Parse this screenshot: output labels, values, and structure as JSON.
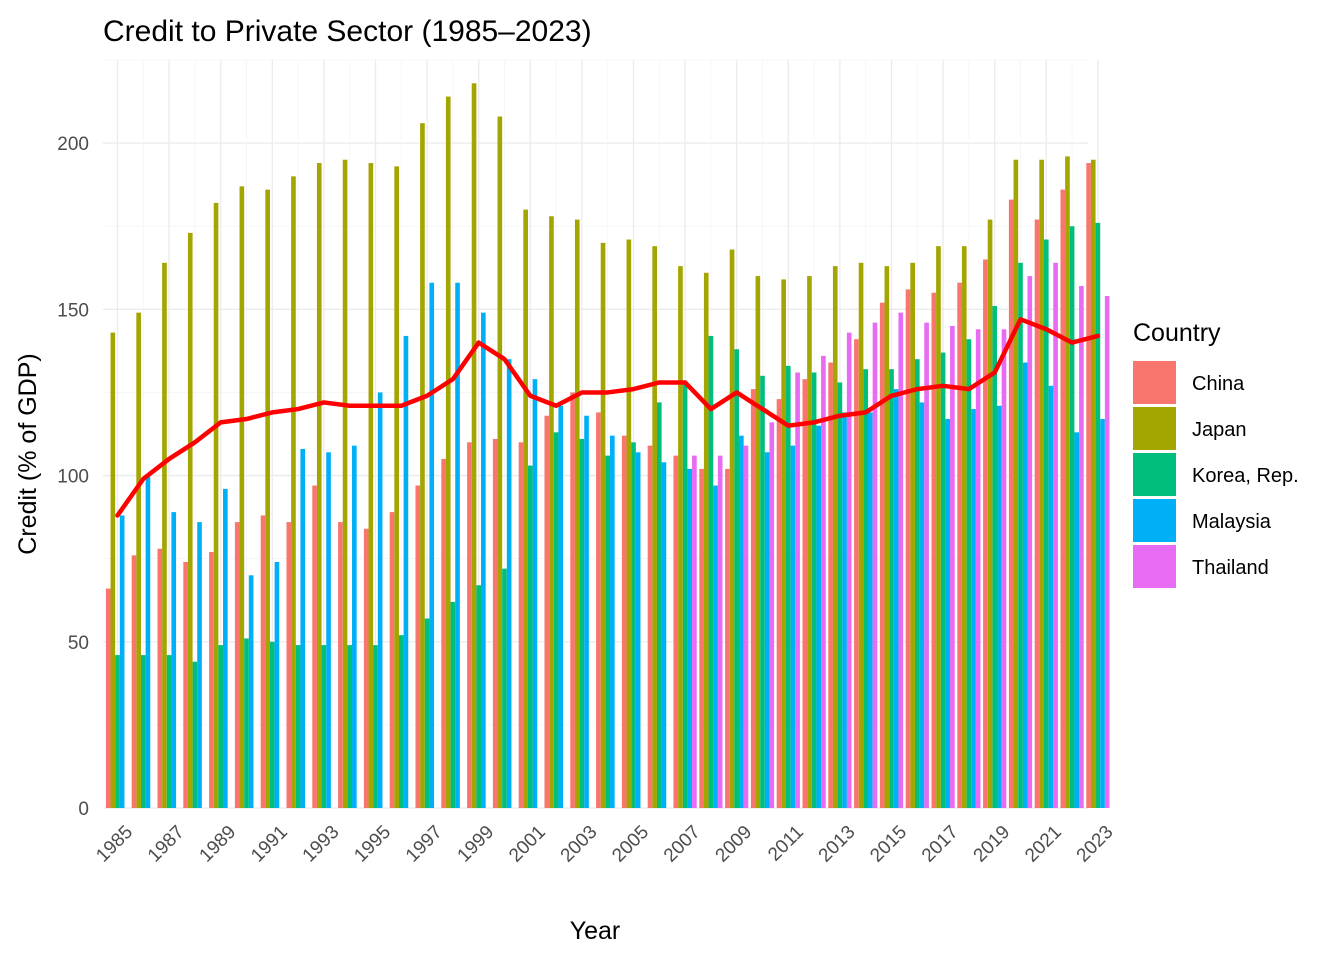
{
  "chart_data": {
    "type": "bar",
    "title": "Credit to Private Sector (1985–2023)",
    "xlabel": "Year",
    "ylabel": "Credit (% of GDP)",
    "ylim": [
      0,
      225
    ],
    "y_ticks": [
      0,
      50,
      100,
      150,
      200
    ],
    "x_tick_labels": [
      "1985",
      "1987",
      "1989",
      "1991",
      "1993",
      "1995",
      "1997",
      "1999",
      "2001",
      "2003",
      "2005",
      "2007",
      "2009",
      "2011",
      "2013",
      "2015",
      "2017",
      "2019",
      "2021",
      "2023"
    ],
    "grid": true,
    "legend": {
      "title": "Country",
      "position": "right"
    },
    "categories": [
      "1985",
      "1986",
      "1987",
      "1988",
      "1989",
      "1990",
      "1991",
      "1992",
      "1993",
      "1994",
      "1995",
      "1996",
      "1997",
      "1998",
      "1999",
      "2000",
      "2001",
      "2002",
      "2003",
      "2004",
      "2005",
      "2006",
      "2007",
      "2008",
      "2009",
      "2010",
      "2011",
      "2012",
      "2013",
      "2014",
      "2015",
      "2016",
      "2017",
      "2018",
      "2019",
      "2020",
      "2021",
      "2022",
      "2023"
    ],
    "series": [
      {
        "name": "China",
        "color": "#F8766D",
        "values": [
          66,
          76,
          78,
          74,
          77,
          86,
          88,
          86,
          97,
          86,
          84,
          89,
          97,
          105,
          110,
          111,
          110,
          118,
          125,
          119,
          112,
          109,
          106,
          102,
          102,
          126,
          123,
          129,
          134,
          141,
          152,
          156,
          155,
          158,
          165,
          183,
          177,
          186,
          194
        ]
      },
      {
        "name": "Japan",
        "color": "#A3A500",
        "values": [
          143,
          149,
          164,
          173,
          182,
          187,
          186,
          190,
          194,
          195,
          194,
          193,
          206,
          214,
          218,
          208,
          180,
          178,
          177,
          170,
          171,
          169,
          163,
          161,
          168,
          160,
          159,
          160,
          163,
          164,
          163,
          164,
          169,
          169,
          177,
          195,
          195,
          196,
          195
        ]
      },
      {
        "name": "Korea, Rep.",
        "color": "#00BF7D",
        "values": [
          46,
          46,
          46,
          44,
          49,
          51,
          50,
          49,
          49,
          49,
          49,
          52,
          57,
          62,
          67,
          72,
          103,
          113,
          111,
          106,
          110,
          122,
          128,
          142,
          138,
          130,
          133,
          131,
          128,
          132,
          132,
          135,
          137,
          141,
          151,
          164,
          171,
          175,
          176
        ]
      },
      {
        "name": "Malaysia",
        "color": "#00B0F6",
        "values": [
          88,
          100,
          89,
          86,
          96,
          70,
          74,
          108,
          107,
          109,
          125,
          142,
          158,
          158,
          149,
          135,
          129,
          121,
          118,
          112,
          107,
          104,
          102,
          97,
          112,
          107,
          109,
          115,
          119,
          119,
          126,
          122,
          117,
          120,
          121,
          134,
          127,
          113,
          117
        ]
      },
      {
        "name": "Thailand",
        "color": "#E76BF3",
        "values": [
          null,
          null,
          null,
          null,
          null,
          null,
          null,
          null,
          null,
          null,
          null,
          null,
          null,
          null,
          null,
          null,
          null,
          null,
          null,
          null,
          null,
          null,
          106,
          106,
          109,
          116,
          131,
          136,
          143,
          146,
          149,
          146,
          145,
          144,
          144,
          160,
          164,
          157,
          154
        ]
      }
    ],
    "overlay_line": {
      "color": "#FF0000",
      "values": [
        88,
        99,
        105,
        110,
        116,
        117,
        119,
        120,
        122,
        121,
        121,
        121,
        124,
        129,
        140,
        135,
        124,
        121,
        125,
        125,
        126,
        128,
        128,
        120,
        125,
        120,
        115,
        116,
        118,
        119,
        124,
        126,
        127,
        126,
        131,
        147,
        144,
        140,
        142
      ]
    }
  }
}
